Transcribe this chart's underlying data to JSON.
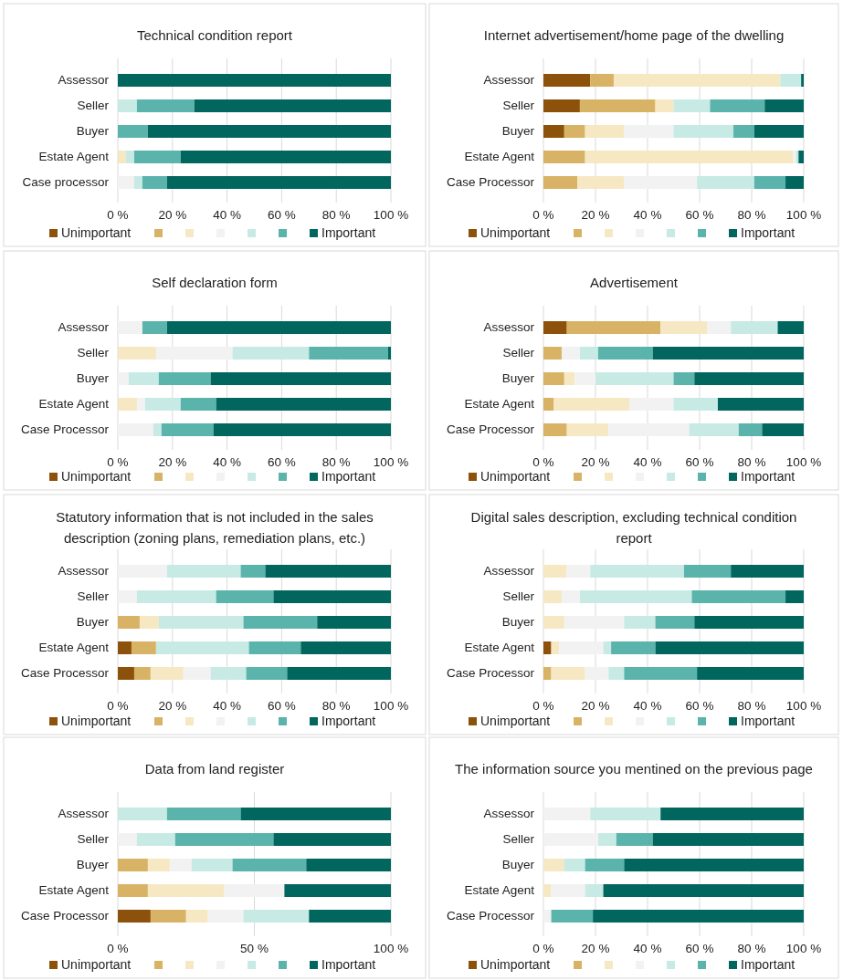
{
  "chart_data": [
    {
      "type": "bar",
      "orientation": "horizontal",
      "stacked": true,
      "title": "Technical condition report",
      "categories": [
        "Assessor",
        "Seller",
        "Buyer",
        "Estate Agent",
        "Case processor"
      ],
      "xlim": [
        0,
        100
      ],
      "xticks": [
        {
          "value": 0,
          "label": "0 %"
        },
        {
          "value": 20,
          "label": "20 %"
        },
        {
          "value": 40,
          "label": "40 %"
        },
        {
          "value": 60,
          "label": "60 %"
        },
        {
          "value": 80,
          "label": "80 %"
        },
        {
          "value": 100,
          "label": "100 %"
        }
      ],
      "grid": "x",
      "legend": "bottom",
      "series": [
        {
          "name": "Unimportant",
          "color": "#8c510a",
          "values": [
            0,
            0,
            0,
            0,
            0
          ]
        },
        {
          "color": "#d8b365",
          "values": [
            0,
            0,
            0,
            0,
            0
          ]
        },
        {
          "color": "#f6e8c3",
          "values": [
            0,
            0,
            0,
            3,
            0
          ]
        },
        {
          "color": "#f2f2f2",
          "values": [
            0,
            0,
            0,
            0,
            6
          ]
        },
        {
          "color": "#c7eae5",
          "values": [
            0,
            7,
            0,
            3,
            3
          ]
        },
        {
          "color": "#5ab4ac",
          "values": [
            0,
            21,
            11,
            17,
            9
          ]
        },
        {
          "name": "Important",
          "color": "#01665e",
          "values": [
            100,
            72,
            89,
            77,
            82
          ]
        }
      ]
    },
    {
      "type": "bar",
      "orientation": "horizontal",
      "stacked": true,
      "title": "Internet advertisement/home page of the dwelling",
      "categories": [
        "Assessor",
        "Seller",
        "Buyer",
        "Estate Agent",
        "Case Processor"
      ],
      "xlim": [
        0,
        100
      ],
      "xticks": [
        {
          "value": 0,
          "label": "0 %"
        },
        {
          "value": 20,
          "label": "20 %"
        },
        {
          "value": 40,
          "label": "40 %"
        },
        {
          "value": 60,
          "label": "60 %"
        },
        {
          "value": 80,
          "label": "80 %"
        },
        {
          "value": 100,
          "label": "100 %"
        }
      ],
      "grid": "x",
      "legend": "bottom",
      "series": [
        {
          "name": "Unimportant",
          "color": "#8c510a",
          "values": [
            18,
            14,
            8,
            0,
            0
          ]
        },
        {
          "color": "#d8b365",
          "values": [
            9,
            29,
            8,
            16,
            13
          ]
        },
        {
          "color": "#f6e8c3",
          "values": [
            64,
            7,
            15,
            80,
            18
          ]
        },
        {
          "color": "#f2f2f2",
          "values": [
            0,
            0,
            19,
            1,
            28
          ]
        },
        {
          "color": "#c7eae5",
          "values": [
            8,
            14,
            23,
            1,
            22
          ]
        },
        {
          "color": "#5ab4ac",
          "values": [
            0,
            21,
            8,
            0,
            12
          ]
        },
        {
          "name": "Important",
          "color": "#01665e",
          "values": [
            1,
            15,
            19,
            2,
            7
          ]
        }
      ]
    },
    {
      "type": "bar",
      "orientation": "horizontal",
      "stacked": true,
      "title": "Self declaration form",
      "categories": [
        "Assessor",
        "Seller",
        "Buyer",
        "Estate Agent",
        "Case Processor"
      ],
      "xlim": [
        0,
        100
      ],
      "xticks": [
        {
          "value": 0,
          "label": "0 %"
        },
        {
          "value": 20,
          "label": "20 %"
        },
        {
          "value": 40,
          "label": "40 %"
        },
        {
          "value": 60,
          "label": "60 %"
        },
        {
          "value": 80,
          "label": "80 %"
        },
        {
          "value": 100,
          "label": "100 %"
        }
      ],
      "grid": "x",
      "legend": "bottom",
      "series": [
        {
          "name": "Unimportant",
          "color": "#8c510a",
          "values": [
            0,
            0,
            0,
            0,
            0
          ]
        },
        {
          "color": "#d8b365",
          "values": [
            0,
            0,
            0,
            0,
            0
          ]
        },
        {
          "color": "#f6e8c3",
          "values": [
            0,
            14,
            0,
            7,
            0
          ]
        },
        {
          "color": "#f2f2f2",
          "values": [
            9,
            28,
            4,
            3,
            13
          ]
        },
        {
          "color": "#c7eae5",
          "values": [
            0,
            28,
            11,
            13,
            3
          ]
        },
        {
          "color": "#5ab4ac",
          "values": [
            9,
            29,
            19,
            13,
            19
          ]
        },
        {
          "name": "Important",
          "color": "#01665e",
          "values": [
            82,
            1,
            66,
            64,
            65
          ]
        }
      ]
    },
    {
      "type": "bar",
      "orientation": "horizontal",
      "stacked": true,
      "title": "Advertisement",
      "categories": [
        "Assessor",
        "Seller",
        "Buyer",
        "Estate Agent",
        "Case Processor"
      ],
      "xlim": [
        0,
        100
      ],
      "xticks": [
        {
          "value": 0,
          "label": "0 %"
        },
        {
          "value": 20,
          "label": "20 %"
        },
        {
          "value": 40,
          "label": "40 %"
        },
        {
          "value": 60,
          "label": "60 %"
        },
        {
          "value": 80,
          "label": "80 %"
        },
        {
          "value": 100,
          "label": "100 %"
        }
      ],
      "grid": "x",
      "legend": "bottom",
      "series": [
        {
          "name": "Unimportant",
          "color": "#8c510a",
          "values": [
            9,
            0,
            0,
            0,
            0
          ]
        },
        {
          "color": "#d8b365",
          "values": [
            36,
            7,
            8,
            4,
            9
          ]
        },
        {
          "color": "#f6e8c3",
          "values": [
            18,
            0,
            4,
            29,
            16
          ]
        },
        {
          "color": "#f2f2f2",
          "values": [
            9,
            7,
            8,
            17,
            31
          ]
        },
        {
          "color": "#c7eae5",
          "values": [
            18,
            7,
            30,
            17,
            19
          ]
        },
        {
          "color": "#5ab4ac",
          "values": [
            0,
            21,
            8,
            0,
            9
          ]
        },
        {
          "name": "Important",
          "color": "#01665e",
          "values": [
            10,
            58,
            42,
            33,
            16
          ]
        }
      ]
    },
    {
      "type": "bar",
      "orientation": "horizontal",
      "stacked": true,
      "title": "Statutory information that is not included in the sales description (zoning plans, remediation plans, etc.)",
      "categories": [
        "Assessor",
        "Seller",
        "Buyer",
        "Estate Agent",
        "Case Processor"
      ],
      "xlim": [
        0,
        100
      ],
      "xticks": [
        {
          "value": 0,
          "label": "0 %"
        },
        {
          "value": 20,
          "label": "20 %"
        },
        {
          "value": 40,
          "label": "40 %"
        },
        {
          "value": 60,
          "label": "60 %"
        },
        {
          "value": 80,
          "label": "80 %"
        },
        {
          "value": 100,
          "label": "100 %"
        }
      ],
      "grid": "x",
      "legend": "bottom",
      "series": [
        {
          "name": "Unimportant",
          "color": "#8c510a",
          "values": [
            0,
            0,
            0,
            5,
            6
          ]
        },
        {
          "color": "#d8b365",
          "values": [
            0,
            0,
            8,
            9,
            6
          ]
        },
        {
          "color": "#f6e8c3",
          "values": [
            0,
            0,
            7,
            0,
            12
          ]
        },
        {
          "color": "#f2f2f2",
          "values": [
            18,
            7,
            0,
            0,
            10
          ]
        },
        {
          "color": "#c7eae5",
          "values": [
            27,
            29,
            31,
            34,
            13
          ]
        },
        {
          "color": "#5ab4ac",
          "values": [
            9,
            21,
            27,
            19,
            15
          ]
        },
        {
          "name": "Important",
          "color": "#01665e",
          "values": [
            46,
            43,
            27,
            33,
            38
          ]
        }
      ]
    },
    {
      "type": "bar",
      "orientation": "horizontal",
      "stacked": true,
      "title": "Digital sales description, excluding technical condition report",
      "categories": [
        "Assessor",
        "Seller",
        "Buyer",
        "Estate Agent",
        "Case Processor"
      ],
      "xlim": [
        0,
        100
      ],
      "xticks": [
        {
          "value": 0,
          "label": "0 %"
        },
        {
          "value": 20,
          "label": "20 %"
        },
        {
          "value": 40,
          "label": "40 %"
        },
        {
          "value": 60,
          "label": "60 %"
        },
        {
          "value": 80,
          "label": "80 %"
        },
        {
          "value": 100,
          "label": "100 %"
        }
      ],
      "grid": "x",
      "legend": "bottom",
      "series": [
        {
          "name": "Unimportant",
          "color": "#8c510a",
          "values": [
            0,
            0,
            0,
            3,
            0
          ]
        },
        {
          "color": "#d8b365",
          "values": [
            0,
            0,
            0,
            0,
            3
          ]
        },
        {
          "color": "#f6e8c3",
          "values": [
            9,
            7,
            8,
            3,
            13
          ]
        },
        {
          "color": "#f2f2f2",
          "values": [
            9,
            7,
            23,
            17,
            9
          ]
        },
        {
          "color": "#c7eae5",
          "values": [
            36,
            43,
            12,
            3,
            6
          ]
        },
        {
          "color": "#5ab4ac",
          "values": [
            18,
            36,
            15,
            17,
            28
          ]
        },
        {
          "name": "Important",
          "color": "#01665e",
          "values": [
            28,
            7,
            42,
            57,
            41
          ]
        }
      ]
    },
    {
      "type": "bar",
      "orientation": "horizontal",
      "stacked": true,
      "title": "Data from land register",
      "categories": [
        "Assessor",
        "Seller",
        "Buyer",
        "Estate Agent",
        "Case Processor"
      ],
      "xlim": [
        0,
        100
      ],
      "xticks": [
        {
          "value": 0,
          "label": "0 %"
        },
        {
          "value": 50,
          "label": "50 %"
        },
        {
          "value": 100,
          "label": "100 %"
        }
      ],
      "grid": "x",
      "legend": "bottom",
      "series": [
        {
          "name": "Unimportant",
          "color": "#8c510a",
          "values": [
            0,
            0,
            0,
            0,
            12
          ]
        },
        {
          "color": "#d8b365",
          "values": [
            0,
            0,
            11,
            11,
            13
          ]
        },
        {
          "color": "#f6e8c3",
          "values": [
            0,
            0,
            8,
            28,
            8
          ]
        },
        {
          "color": "#f2f2f2",
          "values": [
            0,
            7,
            8,
            22,
            13
          ]
        },
        {
          "color": "#c7eae5",
          "values": [
            18,
            14,
            15,
            0,
            24
          ]
        },
        {
          "color": "#5ab4ac",
          "values": [
            27,
            36,
            27,
            0,
            0
          ]
        },
        {
          "name": "Important",
          "color": "#01665e",
          "values": [
            55,
            43,
            31,
            39,
            30
          ]
        }
      ]
    },
    {
      "type": "bar",
      "orientation": "horizontal",
      "stacked": true,
      "title": "The information source you mentined on the previous page",
      "categories": [
        "Assessor",
        "Seller",
        "Buyer",
        "Estate Agent",
        "Case Processor"
      ],
      "xlim": [
        0,
        100
      ],
      "xticks": [
        {
          "value": 0,
          "label": "0 %"
        },
        {
          "value": 20,
          "label": "20 %"
        },
        {
          "value": 40,
          "label": "40 %"
        },
        {
          "value": 60,
          "label": "60 %"
        },
        {
          "value": 80,
          "label": "80 %"
        },
        {
          "value": 100,
          "label": "100 %"
        }
      ],
      "grid": "x",
      "legend": "bottom",
      "series": [
        {
          "name": "Unimportant",
          "color": "#8c510a",
          "values": [
            0,
            0,
            0,
            0,
            0
          ]
        },
        {
          "color": "#d8b365",
          "values": [
            0,
            0,
            0,
            0,
            0
          ]
        },
        {
          "color": "#f6e8c3",
          "values": [
            0,
            0,
            8,
            3,
            0
          ]
        },
        {
          "color": "#f2f2f2",
          "values": [
            18,
            21,
            0,
            13,
            3
          ]
        },
        {
          "color": "#c7eae5",
          "values": [
            27,
            7,
            8,
            7,
            0
          ]
        },
        {
          "color": "#5ab4ac",
          "values": [
            0,
            14,
            15,
            0,
            16
          ]
        },
        {
          "name": "Important",
          "color": "#01665e",
          "values": [
            55,
            58,
            69,
            77,
            81
          ]
        }
      ]
    }
  ]
}
